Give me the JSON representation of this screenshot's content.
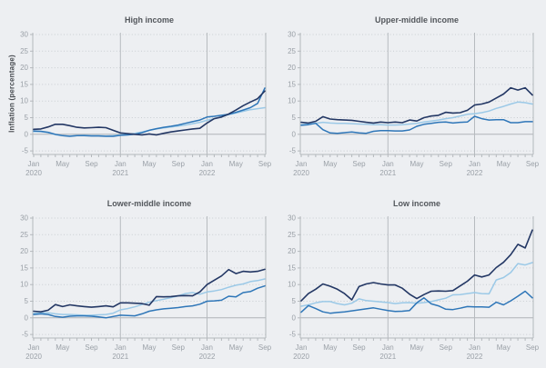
{
  "page": {
    "background_color": "#edeff2"
  },
  "y_axis_title": "Inflation (percentage)",
  "months": [
    "Jan 2020",
    "Feb 2020",
    "Mar 2020",
    "Apr 2020",
    "May 2020",
    "Jun 2020",
    "Jul 2020",
    "Aug 2020",
    "Sep 2020",
    "Oct 2020",
    "Nov 2020",
    "Dec 2020",
    "Jan 2021",
    "Feb 2021",
    "Mar 2021",
    "Apr 2021",
    "May 2021",
    "Jun 2021",
    "Jul 2021",
    "Aug 2021",
    "Sep 2021",
    "Oct 2021",
    "Nov 2021",
    "Dec 2021",
    "Jan 2022",
    "Feb 2022",
    "Mar 2022",
    "Apr 2022",
    "May 2022",
    "Jun 2022",
    "Jul 2022",
    "Aug 2022",
    "Sep 2022"
  ],
  "axis": {
    "y_ticks": [
      30,
      25,
      20,
      15,
      10,
      5,
      0,
      -5
    ],
    "ylim_visible": [
      -5,
      30
    ],
    "x_ticks": [
      {
        "month_index": 0,
        "label": "Jan",
        "year": "2020"
      },
      {
        "month_index": 4,
        "label": "May"
      },
      {
        "month_index": 8,
        "label": "Sep"
      },
      {
        "month_index": 12,
        "label": "Jan",
        "year": "2021"
      },
      {
        "month_index": 16,
        "label": "May"
      },
      {
        "month_index": 20,
        "label": "Sep"
      },
      {
        "month_index": 24,
        "label": "Jan",
        "year": "2022"
      },
      {
        "month_index": 28,
        "label": "May"
      },
      {
        "month_index": 32,
        "label": "Sep"
      }
    ],
    "year_gridline_months": [
      12,
      24
    ],
    "grid": "horizontal-dotted, zero-solid, year-vertical-solid"
  },
  "colors": {
    "series_dark": "#233764",
    "series_medium": "#2e76b8",
    "series_light": "#9bc9e7",
    "grid_dotted": "#c9cdd1",
    "zero_line": "#b0b4b8",
    "spine": "#b4b8bc",
    "year_line": "#b7bbbf",
    "tick_text": "#9aa0a7",
    "title_text": "#53575c"
  },
  "chart_data": [
    {
      "type": "line",
      "title": "High income",
      "x_range": [
        "Jan 2020",
        "Sep 2022"
      ],
      "ylim": [
        -5,
        30
      ],
      "legend": "none",
      "series": [
        {
          "name": "light-blue",
          "color": "#9bc9e7",
          "values": [
            0.8,
            0.8,
            0.5,
            -0.1,
            -0.4,
            -0.5,
            -0.4,
            -0.3,
            -0.4,
            -0.4,
            -0.5,
            -0.4,
            -0.2,
            0.0,
            0.3,
            0.7,
            1.2,
            1.6,
            1.9,
            2.2,
            2.5,
            2.8,
            3.2,
            3.6,
            4.2,
            4.7,
            5.3,
            5.9,
            6.4,
            6.9,
            7.4,
            7.7,
            8.0
          ]
        },
        {
          "name": "medium-blue",
          "color": "#2e76b8",
          "values": [
            1.0,
            0.9,
            0.6,
            0.0,
            -0.4,
            -0.6,
            -0.4,
            -0.4,
            -0.5,
            -0.5,
            -0.6,
            -0.6,
            -0.3,
            -0.2,
            0.0,
            0.5,
            1.2,
            1.7,
            2.1,
            2.4,
            2.8,
            3.3,
            3.8,
            4.3,
            5.2,
            5.4,
            5.7,
            6.0,
            6.6,
            7.3,
            8.0,
            9.3,
            13.9
          ]
        },
        {
          "name": "dark-navy",
          "color": "#233764",
          "values": [
            1.5,
            1.6,
            2.2,
            3.0,
            3.0,
            2.6,
            2.1,
            1.9,
            2.0,
            2.1,
            2.0,
            1.2,
            0.4,
            0.2,
            0.0,
            -0.2,
            0.1,
            -0.2,
            0.3,
            0.7,
            1.0,
            1.3,
            1.6,
            1.8,
            3.4,
            4.7,
            5.2,
            6.1,
            7.3,
            8.6,
            9.7,
            10.7,
            13.0
          ]
        }
      ]
    },
    {
      "type": "line",
      "title": "Upper-middle income",
      "x_range": [
        "Jan 2020",
        "Sep 2022"
      ],
      "ylim": [
        -5,
        30
      ],
      "legend": "none",
      "series": [
        {
          "name": "light-blue",
          "color": "#9bc9e7",
          "values": [
            2.9,
            3.1,
            3.3,
            3.6,
            3.4,
            3.3,
            3.3,
            3.2,
            3.1,
            3.0,
            2.9,
            2.9,
            2.8,
            2.8,
            2.9,
            3.1,
            3.3,
            3.7,
            4.0,
            4.3,
            4.7,
            5.0,
            5.5,
            6.0,
            6.2,
            6.5,
            7.0,
            7.8,
            8.4,
            9.1,
            9.7,
            9.5,
            9.1
          ]
        },
        {
          "name": "medium-blue",
          "color": "#2e76b8",
          "values": [
            2.7,
            2.9,
            3.3,
            1.4,
            0.4,
            0.3,
            0.5,
            0.7,
            0.4,
            0.3,
            0.9,
            1.1,
            1.1,
            1.0,
            1.0,
            1.3,
            2.4,
            3.0,
            3.3,
            3.6,
            3.7,
            3.4,
            3.6,
            3.7,
            5.4,
            4.7,
            4.3,
            4.4,
            4.4,
            3.5,
            3.5,
            3.8,
            3.8
          ]
        },
        {
          "name": "dark-navy",
          "color": "#233764",
          "values": [
            3.6,
            3.4,
            3.9,
            5.3,
            4.6,
            4.4,
            4.3,
            4.2,
            3.9,
            3.6,
            3.4,
            3.7,
            3.5,
            3.7,
            3.5,
            4.3,
            4.0,
            5.0,
            5.5,
            5.7,
            6.6,
            6.4,
            6.5,
            7.2,
            8.8,
            9.1,
            9.7,
            10.9,
            12.1,
            14.0,
            13.3,
            14.0,
            11.8
          ]
        }
      ]
    },
    {
      "type": "line",
      "title": "Lower-middle income",
      "x_range": [
        "Jan 2020",
        "Sep 2022"
      ],
      "ylim": [
        -5,
        30
      ],
      "legend": "none",
      "series": [
        {
          "name": "light-blue",
          "color": "#9bc9e7",
          "values": [
            1.4,
            1.5,
            1.5,
            1.2,
            1.0,
            1.0,
            0.9,
            0.8,
            0.8,
            0.9,
            1.0,
            1.4,
            2.4,
            2.8,
            3.3,
            4.0,
            4.7,
            5.2,
            5.6,
            6.1,
            6.6,
            7.3,
            7.6,
            7.1,
            7.8,
            8.1,
            8.5,
            9.2,
            9.8,
            10.2,
            10.9,
            11.2,
            11.7
          ]
        },
        {
          "name": "medium-blue",
          "color": "#2e76b8",
          "values": [
            1.0,
            1.2,
            1.0,
            0.4,
            0.2,
            0.5,
            0.6,
            0.6,
            0.5,
            0.3,
            0.0,
            0.4,
            0.8,
            0.7,
            0.6,
            1.2,
            2.0,
            2.4,
            2.7,
            2.9,
            3.1,
            3.4,
            3.6,
            4.1,
            5.0,
            5.1,
            5.3,
            6.5,
            6.3,
            7.6,
            7.9,
            8.9,
            9.6
          ]
        },
        {
          "name": "dark-navy",
          "color": "#233764",
          "values": [
            2.0,
            1.8,
            2.3,
            4.0,
            3.4,
            3.9,
            3.6,
            3.4,
            3.2,
            3.4,
            3.6,
            3.3,
            4.5,
            4.5,
            4.4,
            4.3,
            3.8,
            6.4,
            6.3,
            6.4,
            6.6,
            6.7,
            6.6,
            7.8,
            10.0,
            11.3,
            12.6,
            14.5,
            13.3,
            14.0,
            13.8,
            14.0,
            14.6
          ]
        }
      ]
    },
    {
      "type": "line",
      "title": "Low income",
      "x_range": [
        "Jan 2020",
        "Sep 2022"
      ],
      "ylim": [
        -5,
        30
      ],
      "legend": "none",
      "series": [
        {
          "name": "light-blue",
          "color": "#9bc9e7",
          "values": [
            3.5,
            3.9,
            4.5,
            4.9,
            4.9,
            4.3,
            3.9,
            4.4,
            5.7,
            5.2,
            5.0,
            4.8,
            4.6,
            4.3,
            4.5,
            4.6,
            4.4,
            4.6,
            4.9,
            5.4,
            5.9,
            6.9,
            7.0,
            7.3,
            7.6,
            7.3,
            7.2,
            11.4,
            12.1,
            13.6,
            16.3,
            15.9,
            16.6
          ]
        },
        {
          "name": "medium-blue",
          "color": "#2e76b8",
          "values": [
            1.7,
            3.7,
            2.8,
            1.8,
            1.4,
            1.6,
            1.8,
            2.1,
            2.4,
            2.7,
            3.0,
            2.6,
            2.2,
            1.9,
            2.0,
            2.2,
            4.5,
            6.0,
            4.2,
            3.6,
            2.6,
            2.5,
            2.9,
            3.4,
            3.3,
            3.3,
            3.2,
            4.7,
            3.9,
            5.1,
            6.5,
            8.0,
            6.0
          ]
        },
        {
          "name": "dark-navy",
          "color": "#233764",
          "values": [
            5.1,
            7.3,
            8.6,
            10.2,
            9.5,
            8.6,
            7.3,
            5.4,
            9.4,
            10.2,
            10.6,
            10.2,
            9.9,
            9.9,
            8.9,
            7.1,
            5.8,
            7.0,
            8.0,
            8.1,
            8.0,
            8.2,
            9.6,
            11.0,
            12.9,
            12.3,
            12.9,
            15.1,
            16.7,
            19.0,
            22.1,
            21.0,
            26.4
          ]
        }
      ]
    }
  ]
}
